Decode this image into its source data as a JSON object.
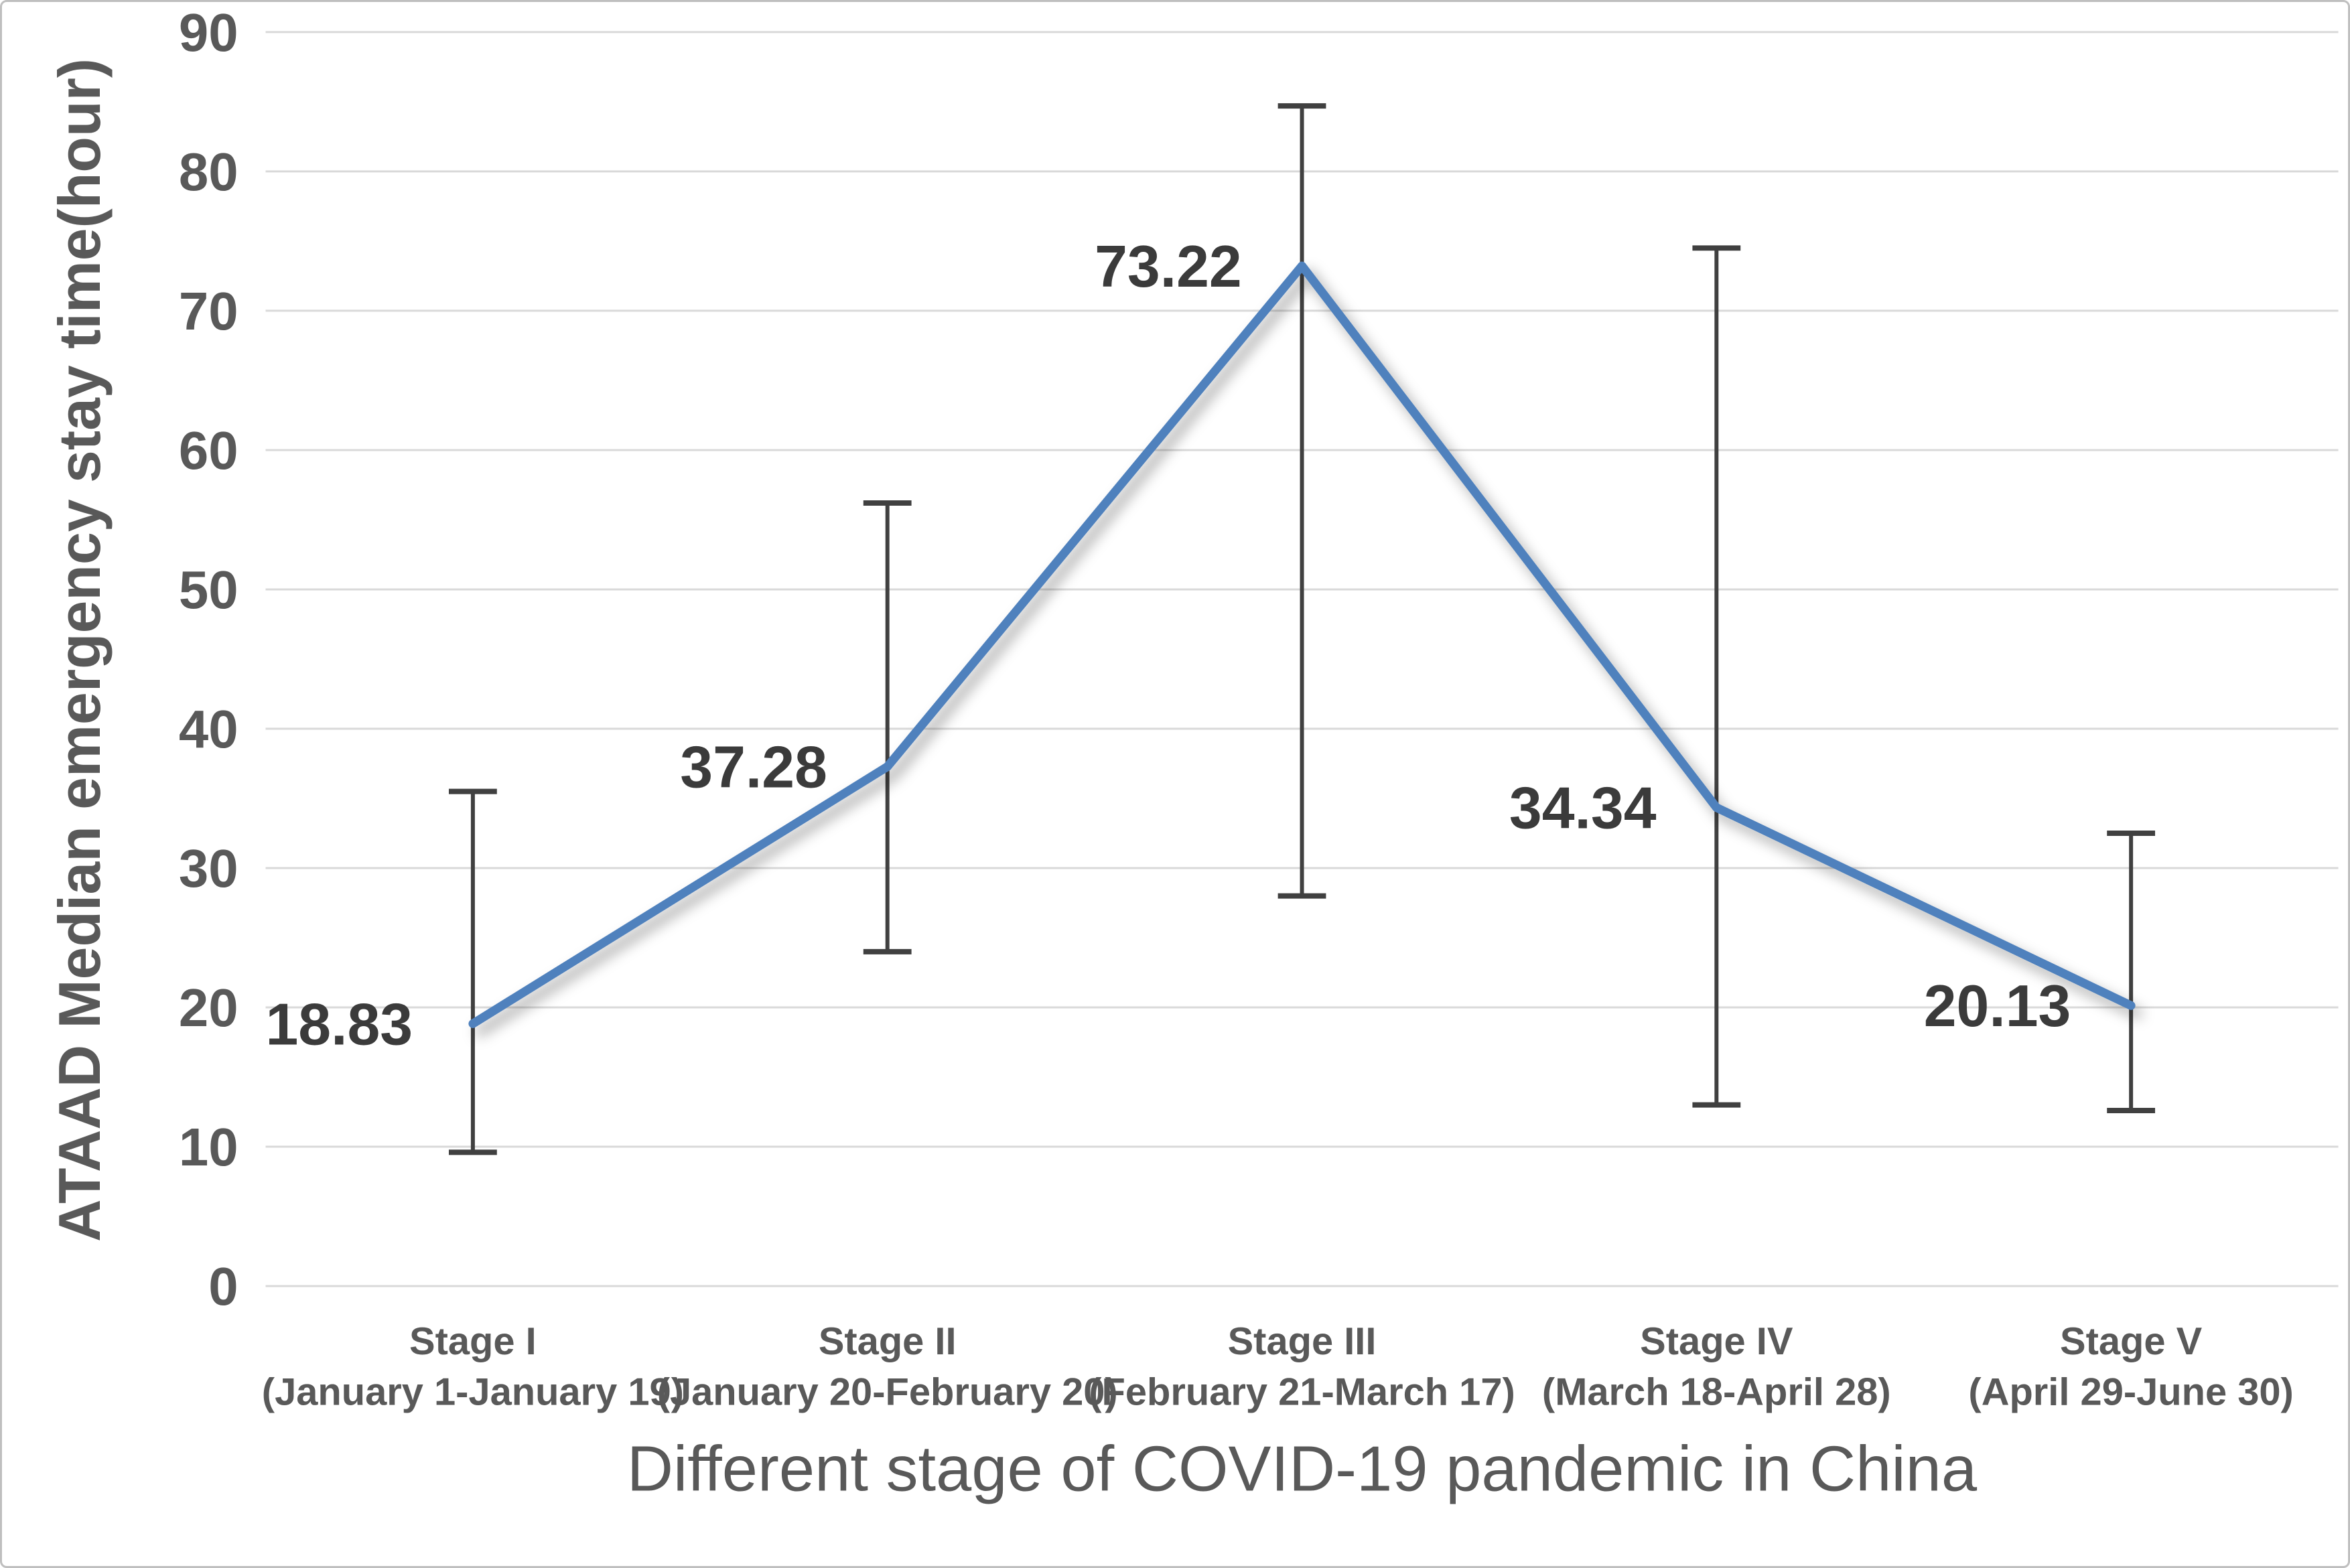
{
  "figure": {
    "background": "#ffffff",
    "border_color": "#bfbfbf"
  },
  "chart_data": {
    "type": "line",
    "title": "",
    "xlabel": "Different stage of COVID-19 pandemic in China",
    "ylabel": "ATAAD Median emergency stay time(hour)",
    "ylim": [
      0,
      90
    ],
    "yticks": [
      0,
      10,
      20,
      30,
      40,
      50,
      60,
      70,
      80,
      90
    ],
    "grid": true,
    "legend_position": "none",
    "categories": [
      {
        "stage": "Stage I",
        "period": "(January 1-January 19)"
      },
      {
        "stage": "Stage II",
        "period": "(January 20-February 20)"
      },
      {
        "stage": "Stage III",
        "period": "(February 21-March 17)"
      },
      {
        "stage": "Stage IV",
        "period": "(March 18-April 28)"
      },
      {
        "stage": "Stage V",
        "period": "(April 29-June 30)"
      }
    ],
    "series": [
      {
        "name": "ATAAD Median emergency stay time (hour)",
        "values": [
          18.83,
          37.28,
          73.22,
          34.34,
          20.13
        ],
        "data_labels": [
          "18.83",
          "37.28",
          "73.22",
          "34.34",
          "20.13"
        ],
        "error_bars": [
          {
            "low": 9.6,
            "high": 35.5
          },
          {
            "low": 24.0,
            "high": 56.2
          },
          {
            "low": 28.0,
            "high": 84.7
          },
          {
            "low": 13.0,
            "high": 74.5
          },
          {
            "low": 12.6,
            "high": 32.5
          }
        ]
      }
    ],
    "colors": {
      "line": "#4f81bd",
      "grid": "#d9d9d9",
      "error_bar": "#404040",
      "tick_text": "#595959",
      "data_label_text": "#3b3b3b"
    }
  }
}
